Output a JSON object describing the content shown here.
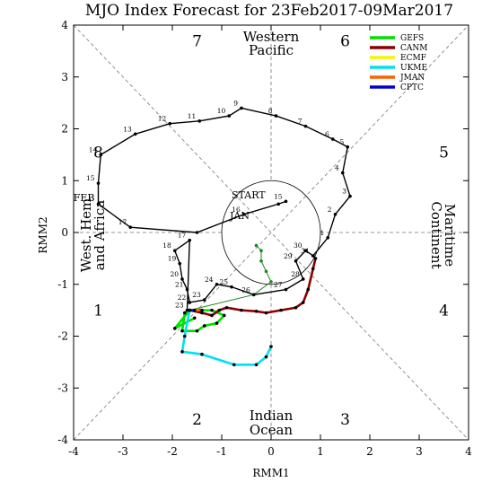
{
  "chart_data": {
    "type": "line",
    "title": "MJO Index Forecast for 23Feb2017-09Mar2017",
    "xlabel": "RMM1",
    "ylabel": "RMM2",
    "xlim": [
      -4,
      4
    ],
    "ylim": [
      -4,
      4
    ],
    "ticks": [
      "-4",
      "-3",
      "-2",
      "-1",
      "0",
      "1",
      "2",
      "3",
      "4"
    ],
    "phases": [
      {
        "label": "1",
        "x": -3.5,
        "y": -1.5
      },
      {
        "label": "2",
        "x": -1.5,
        "y": -3.6
      },
      {
        "label": "3",
        "x": 1.5,
        "y": -3.6
      },
      {
        "label": "4",
        "x": 3.5,
        "y": -1.5
      },
      {
        "label": "5",
        "x": 3.5,
        "y": 1.55
      },
      {
        "label": "6",
        "x": 1.5,
        "y": 3.7
      },
      {
        "label": "7",
        "x": -1.5,
        "y": 3.7
      },
      {
        "label": "8",
        "x": -3.5,
        "y": 1.55
      }
    ],
    "regions": {
      "top": [
        "Western",
        "Pacific"
      ],
      "bottom": [
        "Indian",
        "Ocean"
      ],
      "left": [
        "West. Hem",
        "and Africa"
      ],
      "right": [
        "Maritime",
        "Continent"
      ]
    },
    "annotations": {
      "start": "START",
      "jan": "JAN",
      "feb": "FEB"
    },
    "observed": {
      "name": "",
      "color": "#000000",
      "points": [
        {
          "x": 0.3,
          "y": 0.6,
          "label": "15"
        },
        {
          "x": 0.15,
          "y": 0.55,
          "label": ""
        },
        {
          "x": -0.55,
          "y": 0.35,
          "label": "16"
        },
        {
          "x": -1.5,
          "y": 0.0,
          "label": ""
        },
        {
          "x": -2.85,
          "y": 0.1,
          "label": "17"
        },
        {
          "x": -3.5,
          "y": 0.55,
          "label": "FEB"
        },
        {
          "x": -3.5,
          "y": 0.95,
          "label": "15"
        },
        {
          "x": -3.45,
          "y": 1.5,
          "label": "14"
        },
        {
          "x": -2.75,
          "y": 1.9,
          "label": "13"
        },
        {
          "x": -2.05,
          "y": 2.1,
          "label": "12"
        },
        {
          "x": -1.45,
          "y": 2.15,
          "label": "11"
        },
        {
          "x": -0.85,
          "y": 2.25,
          "label": "10"
        },
        {
          "x": -0.6,
          "y": 2.4,
          "label": "9"
        },
        {
          "x": 0.1,
          "y": 2.25,
          "label": "8"
        },
        {
          "x": 0.7,
          "y": 2.05,
          "label": "7"
        },
        {
          "x": 1.25,
          "y": 1.8,
          "label": "6"
        },
        {
          "x": 1.55,
          "y": 1.65,
          "label": "5"
        },
        {
          "x": 1.45,
          "y": 1.15,
          "label": "4"
        },
        {
          "x": 1.6,
          "y": 0.7,
          "label": "3"
        },
        {
          "x": 1.3,
          "y": 0.35,
          "label": "2"
        },
        {
          "x": 1.15,
          "y": -0.1,
          "label": "1"
        },
        {
          "x": 0.85,
          "y": -0.45,
          "label": "31"
        },
        {
          "x": 0.7,
          "y": -0.35,
          "label": "30"
        },
        {
          "x": 0.5,
          "y": -0.55,
          "label": "29"
        },
        {
          "x": 0.65,
          "y": -0.9,
          "label": "28"
        },
        {
          "x": 0.3,
          "y": -1.1,
          "label": "27"
        },
        {
          "x": -0.35,
          "y": -1.2,
          "label": "26"
        },
        {
          "x": -0.8,
          "y": -1.05,
          "label": "25"
        },
        {
          "x": -1.1,
          "y": -1.0,
          "label": "24"
        },
        {
          "x": -1.35,
          "y": -1.3,
          "label": "23"
        },
        {
          "x": -1.65,
          "y": -1.35,
          "label": "22"
        },
        {
          "x": -1.7,
          "y": -1.1,
          "label": "21"
        },
        {
          "x": -1.8,
          "y": -0.9,
          "label": "20"
        },
        {
          "x": -1.85,
          "y": -0.6,
          "label": "19"
        },
        {
          "x": -1.95,
          "y": -0.35,
          "label": "18"
        },
        {
          "x": -1.65,
          "y": -0.15,
          "label": "17"
        },
        {
          "x": -1.7,
          "y": -1.5,
          "label": "23"
        }
      ]
    },
    "series": [
      {
        "name": "GEFS",
        "color": "#00e000",
        "points": [
          [
            -1.65,
            -1.5
          ],
          [
            -1.2,
            -1.5
          ],
          [
            -0.95,
            -1.6
          ],
          [
            -1.1,
            -1.75
          ],
          [
            -1.35,
            -1.8
          ],
          [
            -1.5,
            -1.9
          ],
          [
            -1.8,
            -1.9
          ],
          [
            -1.75,
            -1.55
          ],
          [
            -1.65,
            -1.5
          ],
          [
            -1.95,
            -1.85
          ],
          [
            -1.55,
            -1.65
          ]
        ]
      },
      {
        "name": "CANM",
        "color": "#8b0000",
        "points": [
          [
            -1.65,
            -1.5
          ],
          [
            -1.4,
            -1.55
          ],
          [
            -1.2,
            -1.6
          ],
          [
            -1.05,
            -1.5
          ],
          [
            -0.9,
            -1.45
          ],
          [
            -0.6,
            -1.5
          ],
          [
            -0.3,
            -1.52
          ],
          [
            -0.1,
            -1.55
          ],
          [
            0.2,
            -1.5
          ],
          [
            0.5,
            -1.45
          ],
          [
            0.65,
            -1.35
          ],
          [
            0.75,
            -1.1
          ],
          [
            0.85,
            -0.7
          ],
          [
            0.9,
            -0.5
          ]
        ]
      },
      {
        "name": "ECMF",
        "color": "#f5f500",
        "points": [
          [
            -1.65,
            -1.5
          ],
          [
            -1.45,
            -1.5
          ]
        ]
      },
      {
        "name": "UKME",
        "color": "#00e0f0",
        "points": [
          [
            -1.65,
            -1.5
          ],
          [
            -1.75,
            -2.0
          ],
          [
            -1.8,
            -2.3
          ],
          [
            -1.4,
            -2.35
          ],
          [
            -0.75,
            -2.55
          ],
          [
            -0.3,
            -2.55
          ],
          [
            -0.1,
            -2.4
          ],
          [
            0.0,
            -2.2
          ]
        ]
      },
      {
        "name": "JMAN",
        "color": "#ff6000",
        "points": [
          [
            -1.65,
            -1.5
          ],
          [
            -1.4,
            -1.5
          ]
        ]
      },
      {
        "name": "CPTC",
        "color": "#0000d0",
        "points": [
          [
            -1.65,
            -1.5
          ],
          [
            -1.55,
            -1.5
          ]
        ]
      }
    ],
    "inner_track": {
      "color": "#1a8a1a",
      "points": [
        [
          -0.3,
          -0.25
        ],
        [
          -0.2,
          -0.35
        ],
        [
          -0.2,
          -0.55
        ],
        [
          -0.1,
          -0.75
        ],
        [
          0.0,
          -0.95
        ],
        [
          -0.35,
          -1.2
        ],
        [
          -1.65,
          -1.5
        ]
      ]
    },
    "legend_position": "top-right",
    "grid": false
  }
}
